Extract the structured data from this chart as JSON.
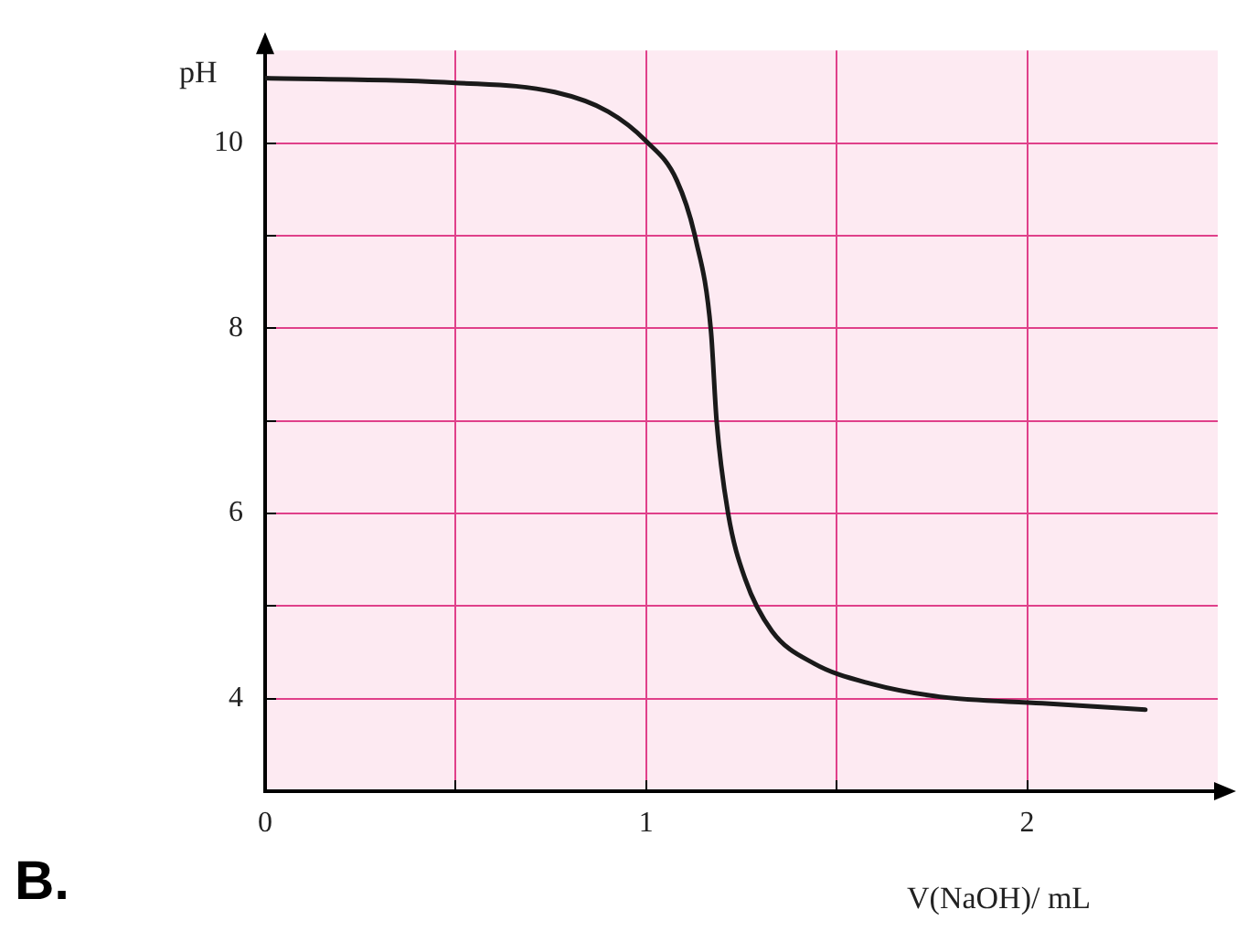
{
  "chart_data": {
    "type": "line",
    "xlabel": "V(NaOH)/ mL",
    "ylabel": "pH",
    "annotations": [
      "B."
    ],
    "x": [
      0,
      0.5,
      0.76,
      0.9,
      1.0,
      1.08,
      1.13,
      1.17,
      1.185,
      1.215,
      1.26,
      1.33,
      1.44,
      1.59,
      1.77,
      2.04,
      2.31
    ],
    "series": [
      {
        "color": "#1a1a1a",
        "values": [
          10.7,
          10.65,
          10.55,
          10.34,
          10.02,
          9.6,
          8.96,
          7.97,
          6.99,
          6.0,
          5.29,
          4.73,
          4.38,
          4.16,
          4.02,
          3.95,
          3.88
        ]
      }
    ],
    "xlim": [
      0,
      2.5
    ],
    "ylim": [
      3,
      11
    ],
    "xticks": [
      0,
      {
        "value": 0.5,
        "label": null
      },
      1,
      {
        "value": 1.5,
        "label": null
      },
      2
    ],
    "yticks": [
      4,
      {
        "value": 5,
        "label": null
      },
      6,
      {
        "value": 7,
        "label": null
      },
      8,
      {
        "value": 9,
        "label": null
      },
      10
    ],
    "grid": true,
    "legend": false,
    "marker": "none",
    "line_style": "solid"
  }
}
